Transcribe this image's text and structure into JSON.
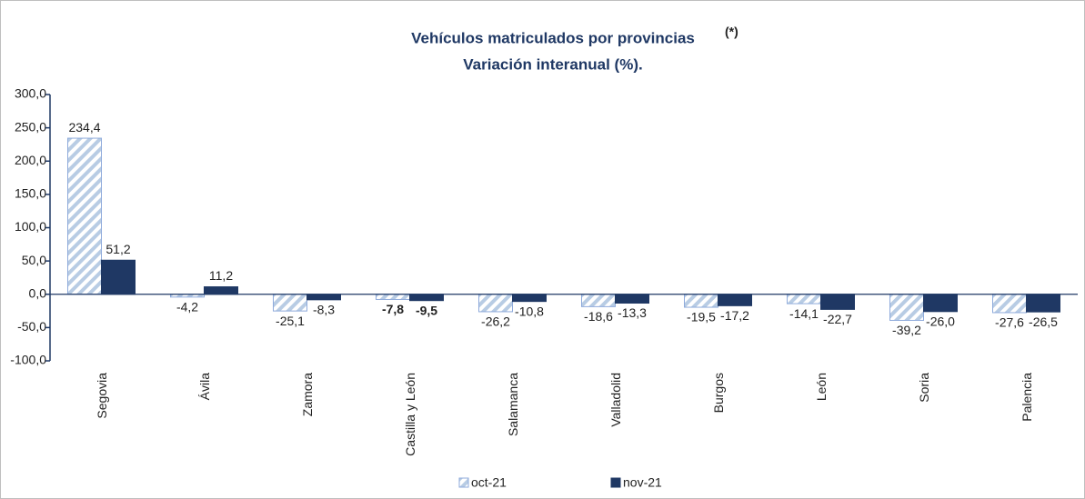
{
  "chart_data": {
    "type": "bar",
    "title": "Vehículos matriculados por provincias",
    "title_note": "(*)",
    "subtitle": "Variación interanual (%).",
    "categories": [
      "Segovia",
      "Ávila",
      "Zamora",
      "Castilla y León",
      "Salamanca",
      "Valladolid",
      "Burgos",
      "León",
      "Soria",
      "Palencia"
    ],
    "highlight": "Castilla y León",
    "series": [
      {
        "name": "oct-21",
        "color": "#b8cce4",
        "pattern": "hatch",
        "values": [
          234.4,
          -4.2,
          -25.1,
          -7.8,
          -26.2,
          -18.6,
          -19.5,
          -14.1,
          -39.2,
          -27.6
        ],
        "value_labels": [
          "234,4",
          "-4,2",
          "-25,1",
          "-7,8",
          "-26,2",
          "-18,6",
          "-19,5",
          "-14,1",
          "-39,2",
          "-27,6"
        ]
      },
      {
        "name": "nov-21",
        "color": "#1f3864",
        "values": [
          51.2,
          11.2,
          -8.3,
          -9.5,
          -10.8,
          -13.3,
          -17.2,
          -22.7,
          -26.0,
          -26.5
        ],
        "value_labels": [
          "51,2",
          "11,2",
          "-8,3",
          "-9,5",
          "-10,8",
          "-13,3",
          "-17,2",
          "-22,7",
          "-26,0",
          "-26,5"
        ]
      }
    ],
    "ylim": [
      -100,
      300
    ],
    "yticks": [
      {
        "value": -100,
        "label": "-100,0"
      },
      {
        "value": -50,
        "label": "-50,0"
      },
      {
        "value": 0,
        "label": "0,0"
      },
      {
        "value": 50,
        "label": "50,0"
      },
      {
        "value": 100,
        "label": "100,0"
      },
      {
        "value": 150,
        "label": "150,0"
      },
      {
        "value": 200,
        "label": "200,0"
      },
      {
        "value": 250,
        "label": "250,0"
      },
      {
        "value": 300,
        "label": "300,0"
      }
    ],
    "legend": "bottom"
  }
}
